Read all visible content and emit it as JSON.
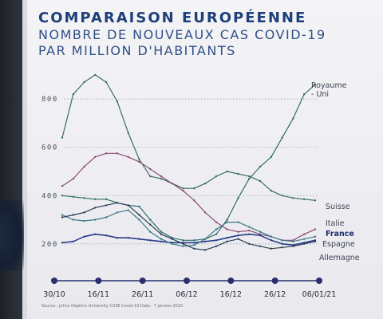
{
  "title": "COMPARAISON EUROPÉENNE",
  "subtitle_line1": "NOMBRE DE NOUVEAUX CAS COVID-19",
  "subtitle_line2": "PAR MILLION D'HABITANTS",
  "source": "Source : Johns Hopkins University CSSE Covid-19 Data - 7 janvier 2020",
  "colors": {
    "title": "#1f3f7a",
    "timeline": "#28306e",
    "grid": "#9aa0aa",
    "royaume_uni": "#2f6e6a",
    "suisse": "#3a6d60",
    "italie": "#8a4a78",
    "france": "#2a3e8a",
    "espagne": "#3c7a86",
    "allemagne": "#2b3e55"
  },
  "chart_data": {
    "type": "line",
    "y_ticks": [
      200,
      400,
      600,
      800
    ],
    "y_tick_labels": [
      "200",
      "400",
      "600",
      "800"
    ],
    "ylim": [
      120,
      880
    ],
    "date_labels": [
      "30/10",
      "16/11",
      "26/11",
      "06/12",
      "16/12",
      "26/12",
      "06/01/21"
    ],
    "x": [
      "30/10",
      "02/11",
      "05/11",
      "08/11",
      "11/11",
      "14/11",
      "17/11",
      "20/11",
      "23/11",
      "26/11",
      "29/11",
      "02/12",
      "05/12",
      "08/12",
      "11/12",
      "14/12",
      "17/12",
      "20/12",
      "23/12",
      "26/12",
      "29/12",
      "01/01",
      "04/01",
      "06/01"
    ],
    "series": [
      {
        "key": "royaume_uni",
        "label_lines": [
          "Royaume",
          "- Uni"
        ],
        "bold": false,
        "values": [
          400,
          395,
          390,
          385,
          385,
          370,
          360,
          355,
          300,
          250,
          225,
          215,
          215,
          220,
          240,
          300,
          390,
          470,
          520,
          560,
          640,
          720,
          820,
          860
        ]
      },
      {
        "key": "suisse",
        "label_lines": [
          "Suisse"
        ],
        "bold": false,
        "values": [
          640,
          820,
          870,
          900,
          870,
          790,
          660,
          550,
          480,
          470,
          450,
          430,
          430,
          450,
          480,
          500,
          490,
          480,
          460,
          420,
          400,
          390,
          385,
          380
        ]
      },
      {
        "key": "italie",
        "label_lines": [
          "Italie"
        ],
        "bold": false,
        "values": [
          440,
          470,
          520,
          560,
          575,
          575,
          560,
          540,
          510,
          480,
          450,
          420,
          380,
          330,
          290,
          260,
          250,
          255,
          240,
          230,
          215,
          215,
          240,
          260
        ]
      },
      {
        "key": "france",
        "label_lines": [
          "France"
        ],
        "bold": true,
        "values": [
          205,
          210,
          230,
          240,
          235,
          225,
          225,
          220,
          215,
          210,
          205,
          205,
          205,
          210,
          215,
          225,
          235,
          240,
          235,
          215,
          200,
          195,
          205,
          215
        ]
      },
      {
        "key": "espagne",
        "label_lines": [
          "Espagne"
        ],
        "bold": false,
        "values": [
          320,
          300,
          295,
          300,
          310,
          330,
          340,
          300,
          250,
          220,
          200,
          190,
          195,
          220,
          260,
          290,
          290,
          270,
          250,
          230,
          215,
          210,
          220,
          230
        ]
      },
      {
        "key": "allemagne",
        "label_lines": [
          "Allemagne"
        ],
        "bold": false,
        "values": [
          310,
          320,
          330,
          350,
          360,
          370,
          360,
          320,
          280,
          240,
          220,
          200,
          180,
          175,
          190,
          210,
          220,
          200,
          190,
          180,
          185,
          190,
          200,
          210
        ]
      }
    ]
  }
}
